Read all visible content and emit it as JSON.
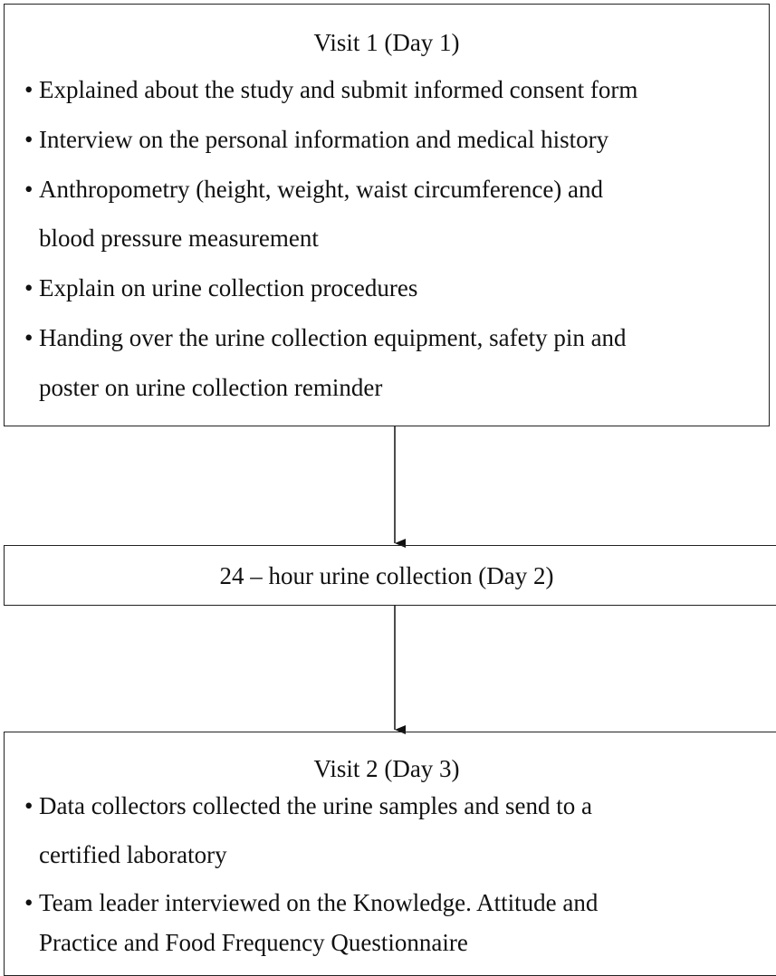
{
  "boxes": [
    {
      "title": "Visit 1 (Day 1)",
      "bullets": [
        [
          "Explained about the study and submit informed consent form"
        ],
        [
          "Interview on the personal information and medical history"
        ],
        [
          "Anthropometry (height, weight, waist circumference) and",
          "blood pressure measurement"
        ],
        [
          "Explain on urine collection procedures"
        ],
        [
          "Handing over the urine collection equipment, safety pin and",
          "poster on urine collection reminder"
        ]
      ]
    },
    {
      "title": "24 – hour urine collection (Day 2)",
      "bullets": []
    },
    {
      "title": "Visit 2 (Day 3)",
      "bullets": [
        [
          "Data collectors collected the urine samples and send to a",
          "certified laboratory"
        ],
        [
          "Team leader interviewed on the Knowledge. Attitude  and",
          "Practice and Food Frequency Questionnaire"
        ]
      ]
    }
  ]
}
